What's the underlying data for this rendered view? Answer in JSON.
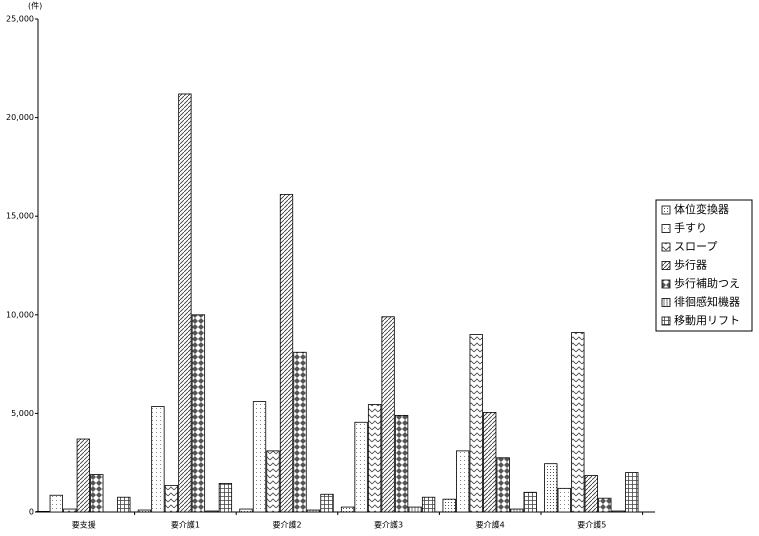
{
  "chart_data": {
    "type": "bar",
    "unit_label": "(件)",
    "categories": [
      "要支援",
      "要介護1",
      "要介護2",
      "要介護3",
      "要介護4",
      "要介護5"
    ],
    "series": [
      {
        "name": "体位変換器",
        "color": "#000000",
        "pattern": "dots",
        "values": [
          30,
          100,
          150,
          250,
          650,
          2450
        ]
      },
      {
        "name": "手すり",
        "color": "#000000",
        "pattern": "sparse",
        "values": [
          850,
          5350,
          5600,
          4550,
          3100,
          1200
        ]
      },
      {
        "name": "スロープ",
        "color": "#000000",
        "pattern": "zigzag",
        "values": [
          150,
          1350,
          3100,
          5450,
          9000,
          9100
        ]
      },
      {
        "name": "歩行器",
        "color": "#000000",
        "pattern": "diagonal",
        "values": [
          3700,
          21200,
          16100,
          9900,
          5050,
          1850
        ]
      },
      {
        "name": "歩行補助つえ",
        "color": "#000000",
        "pattern": "diamond",
        "values": [
          1900,
          10000,
          8100,
          4900,
          2750,
          700
        ]
      },
      {
        "name": "徘徊感知機器",
        "color": "#000000",
        "pattern": "vertical",
        "values": [
          0,
          50,
          100,
          250,
          150,
          50
        ]
      },
      {
        "name": "移動用リフト",
        "color": "#000000",
        "pattern": "grid",
        "values": [
          750,
          1450,
          900,
          750,
          1000,
          2000
        ]
      }
    ],
    "ylim": [
      0,
      25000
    ],
    "yticks": [
      0,
      {
        "value": 5000,
        "label": "5,000"
      },
      {
        "value": 10000,
        "label": "10,000"
      },
      {
        "value": 15000,
        "label": "15,000"
      },
      {
        "value": 20000,
        "label": "20,000"
      },
      {
        "value": 25000,
        "label": "25,000"
      }
    ],
    "legend": "right"
  }
}
